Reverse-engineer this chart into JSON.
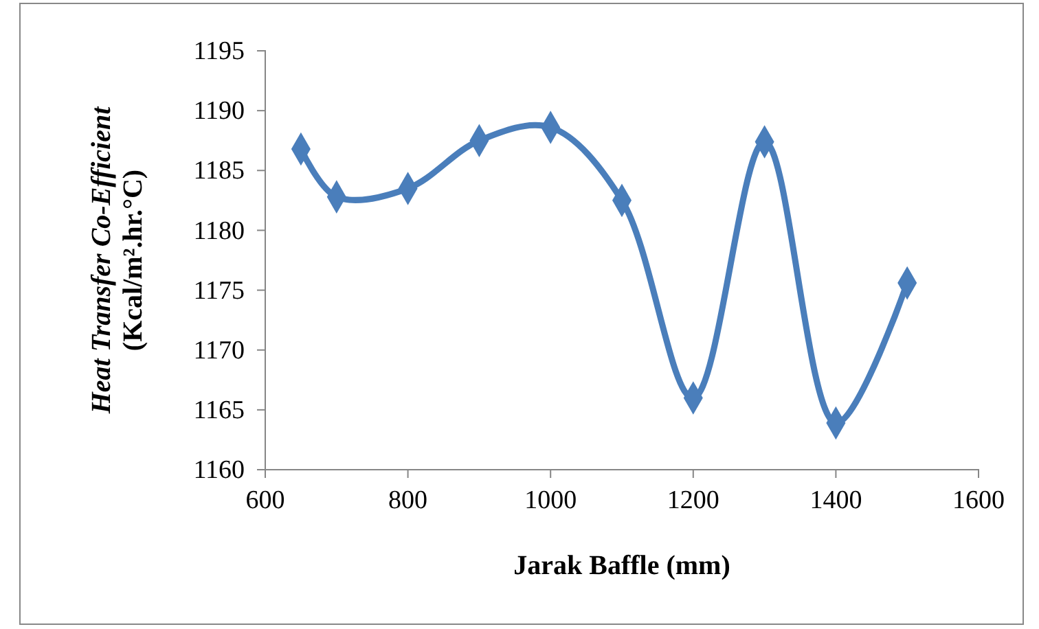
{
  "chart_data": {
    "type": "line",
    "xlabel": "Jarak Baffle (mm)",
    "ylabel": "Heat Transfer Co-Efficient\n(Kcal/m².hr.°C)",
    "x": [
      650,
      700,
      800,
      900,
      1000,
      1100,
      1200,
      1300,
      1400,
      1500
    ],
    "series": [
      {
        "color": "#4a7ebb",
        "values": [
          1186.8,
          1182.8,
          1183.5,
          1187.5,
          1188.6,
          1182.5,
          1166.0,
          1187.4,
          1163.9,
          1175.6
        ]
      }
    ],
    "xlim": [
      600,
      1600
    ],
    "xticks": [
      600,
      800,
      1000,
      1200,
      1400,
      1600
    ],
    "ylim": [
      1160,
      1195
    ],
    "yticks": [
      1160,
      1165,
      1170,
      1175,
      1180,
      1185,
      1190,
      1195
    ],
    "marker": "diamond",
    "line_style": "solid"
  }
}
